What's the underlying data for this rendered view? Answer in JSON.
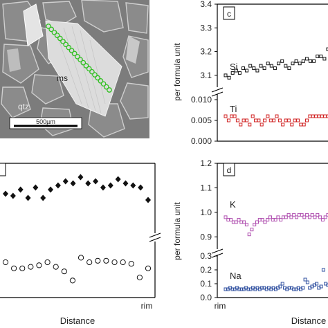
{
  "micrograph": {
    "labels": {
      "ms": "ms",
      "qtz": "qtz"
    },
    "scale_bar": "500µm",
    "spot_count": 22,
    "colors": {
      "background": "#7c7c7c",
      "grain": "#8d8d8d",
      "crystal": "#dcdcdc",
      "spot": "#30c020"
    }
  },
  "colors": {
    "black": "#111111",
    "red": "#d02020",
    "magenta": "#b050b0",
    "blue": "#3050a0"
  },
  "chart_data": [
    {
      "id": "b",
      "type": "scatter",
      "panel_label": "",
      "xlabel": "Distance",
      "x_end_label": "rim",
      "broken_y_axis": true,
      "series": [
        {
          "marker": "filled-diamond",
          "color": "#111111",
          "values": [
            0.7,
            0.69,
            0.72,
            0.68,
            0.73,
            0.68,
            0.72,
            0.74,
            0.76,
            0.75,
            0.78,
            0.75,
            0.76,
            0.73,
            0.74,
            0.77,
            0.75,
            0.74,
            0.73,
            0.67
          ]
        },
        {
          "marker": "open-circle",
          "color": "#111111",
          "values": [
            0.25,
            0.21,
            0.21,
            0.22,
            0.23,
            0.25,
            0.22,
            0.19,
            0.13,
            0.28,
            0.25,
            0.26,
            0.26,
            0.25,
            0.25,
            0.24,
            0.15,
            0.21
          ]
        }
      ]
    },
    {
      "id": "c",
      "type": "scatter",
      "panel_label": "c",
      "ylabel": "per formula unit",
      "xlabel": "Distance",
      "upper": {
        "ylim": [
          3.05,
          3.4
        ],
        "ticks": [
          "3.1",
          "3.2",
          "3.3",
          "3.4"
        ],
        "tick_values": [
          3.1,
          3.2,
          3.3,
          3.4
        ]
      },
      "lower": {
        "ylim": [
          0,
          0.011
        ],
        "ticks": [
          "0.000",
          "0.005",
          "0.010"
        ],
        "tick_values": [
          0,
          0.005,
          0.01
        ]
      },
      "series": [
        {
          "name": "Si",
          "color": "#111111",
          "band": "upper",
          "values": [
            3.1,
            3.09,
            3.11,
            3.12,
            3.11,
            3.13,
            3.12,
            3.14,
            3.13,
            3.12,
            3.14,
            3.13,
            3.15,
            3.14,
            3.13,
            3.15,
            3.16,
            3.14,
            3.13,
            3.15,
            3.16,
            3.15,
            3.16,
            3.17,
            3.16,
            3.16,
            3.18,
            3.18,
            3.17,
            3.21
          ]
        },
        {
          "name": "Ti",
          "color": "#d02020",
          "band": "lower",
          "values": [
            0.006,
            0.005,
            0.006,
            0.006,
            0.005,
            0.004,
            0.005,
            0.005,
            0.004,
            0.006,
            0.005,
            0.005,
            0.004,
            0.005,
            0.006,
            0.005,
            0.005,
            0.006,
            0.005,
            0.004,
            0.005,
            0.005,
            0.004,
            0.005,
            0.005,
            0.004,
            0.004,
            0.005,
            0.006,
            0.006,
            0.006,
            0.006,
            0.006,
            0.006,
            0.006
          ]
        }
      ]
    },
    {
      "id": "d",
      "type": "scatter",
      "panel_label": "d",
      "ylabel": "per formula unit",
      "xlabel": "Distance",
      "x_start_label": "rim",
      "upper": {
        "ylim": [
          0.85,
          1.2
        ],
        "ticks": [
          "0.9",
          "1.0",
          "1.1",
          "1.2"
        ],
        "tick_values": [
          0.9,
          1.0,
          1.1,
          1.2
        ]
      },
      "lower": {
        "ylim": [
          0,
          0.32
        ],
        "ticks": [
          "0.0",
          "0.1",
          "0.2",
          "0.3"
        ],
        "tick_values": [
          0,
          0.1,
          0.2,
          0.3
        ]
      },
      "series": [
        {
          "name": "K",
          "color": "#b050b0",
          "band": "upper",
          "values": [
            0.98,
            0.97,
            0.97,
            0.96,
            0.96,
            0.97,
            0.96,
            0.96,
            0.95,
            0.91,
            0.93,
            0.95,
            0.96,
            0.97,
            0.97,
            0.96,
            0.97,
            0.98,
            0.97,
            0.97,
            0.98,
            0.97,
            0.98,
            0.98,
            0.99,
            0.98,
            0.99,
            0.98,
            0.99,
            0.99,
            0.98,
            0.99,
            0.98,
            0.99,
            0.98,
            0.99,
            0.98,
            0.97,
            0.98,
            0.99
          ]
        },
        {
          "name": "Na",
          "color": "#3050a0",
          "band": "lower",
          "values": [
            0.06,
            0.06,
            0.07,
            0.06,
            0.06,
            0.07,
            0.06,
            0.06,
            0.06,
            0.07,
            0.06,
            0.06,
            0.07,
            0.06,
            0.07,
            0.06,
            0.07,
            0.07,
            0.06,
            0.07,
            0.06,
            0.07,
            0.06,
            0.07,
            0.08,
            0.1,
            0.07,
            0.06,
            0.07,
            0.07,
            0.06,
            0.06,
            0.07,
            0.06,
            0.07,
            0.13,
            0.11,
            0.07,
            0.08,
            0.09,
            0.1,
            0.07,
            0.08,
            0.2,
            0.1,
            0.09
          ]
        }
      ]
    }
  ]
}
